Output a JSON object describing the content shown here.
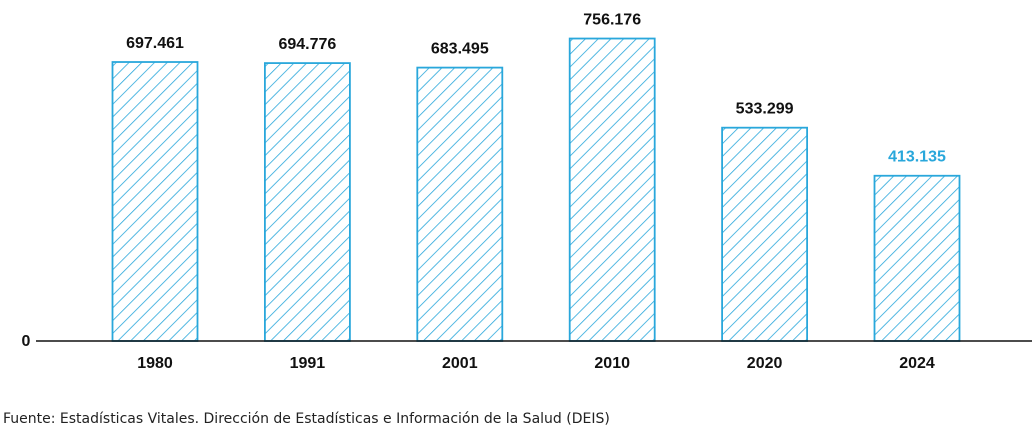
{
  "chart_data": {
    "type": "bar",
    "title": "",
    "xlabel": "",
    "ylabel": "",
    "categories": [
      "1980",
      "1991",
      "2001",
      "2010",
      "2020",
      "2024"
    ],
    "values": [
      697461,
      694776,
      683495,
      756176,
      533299,
      413135
    ],
    "value_labels": [
      "697.461",
      "694.776",
      "683.495",
      "756.176",
      "533.299",
      "413.135"
    ],
    "highlight_index": 5,
    "ylim": [
      0,
      800000
    ],
    "y_ticks": [
      {
        "value": 0,
        "label": "0"
      }
    ],
    "grid": false,
    "legend": "none",
    "colors": {
      "bar_stroke": "#29a7db",
      "hatch": "#29a7db",
      "label": "#111111",
      "highlight_label": "#29a7db",
      "axis": "#111111"
    }
  },
  "source_text": "Fuente: Estadísticas Vitales. Dirección de Estadísticas e Información de la Salud (DEIS)"
}
